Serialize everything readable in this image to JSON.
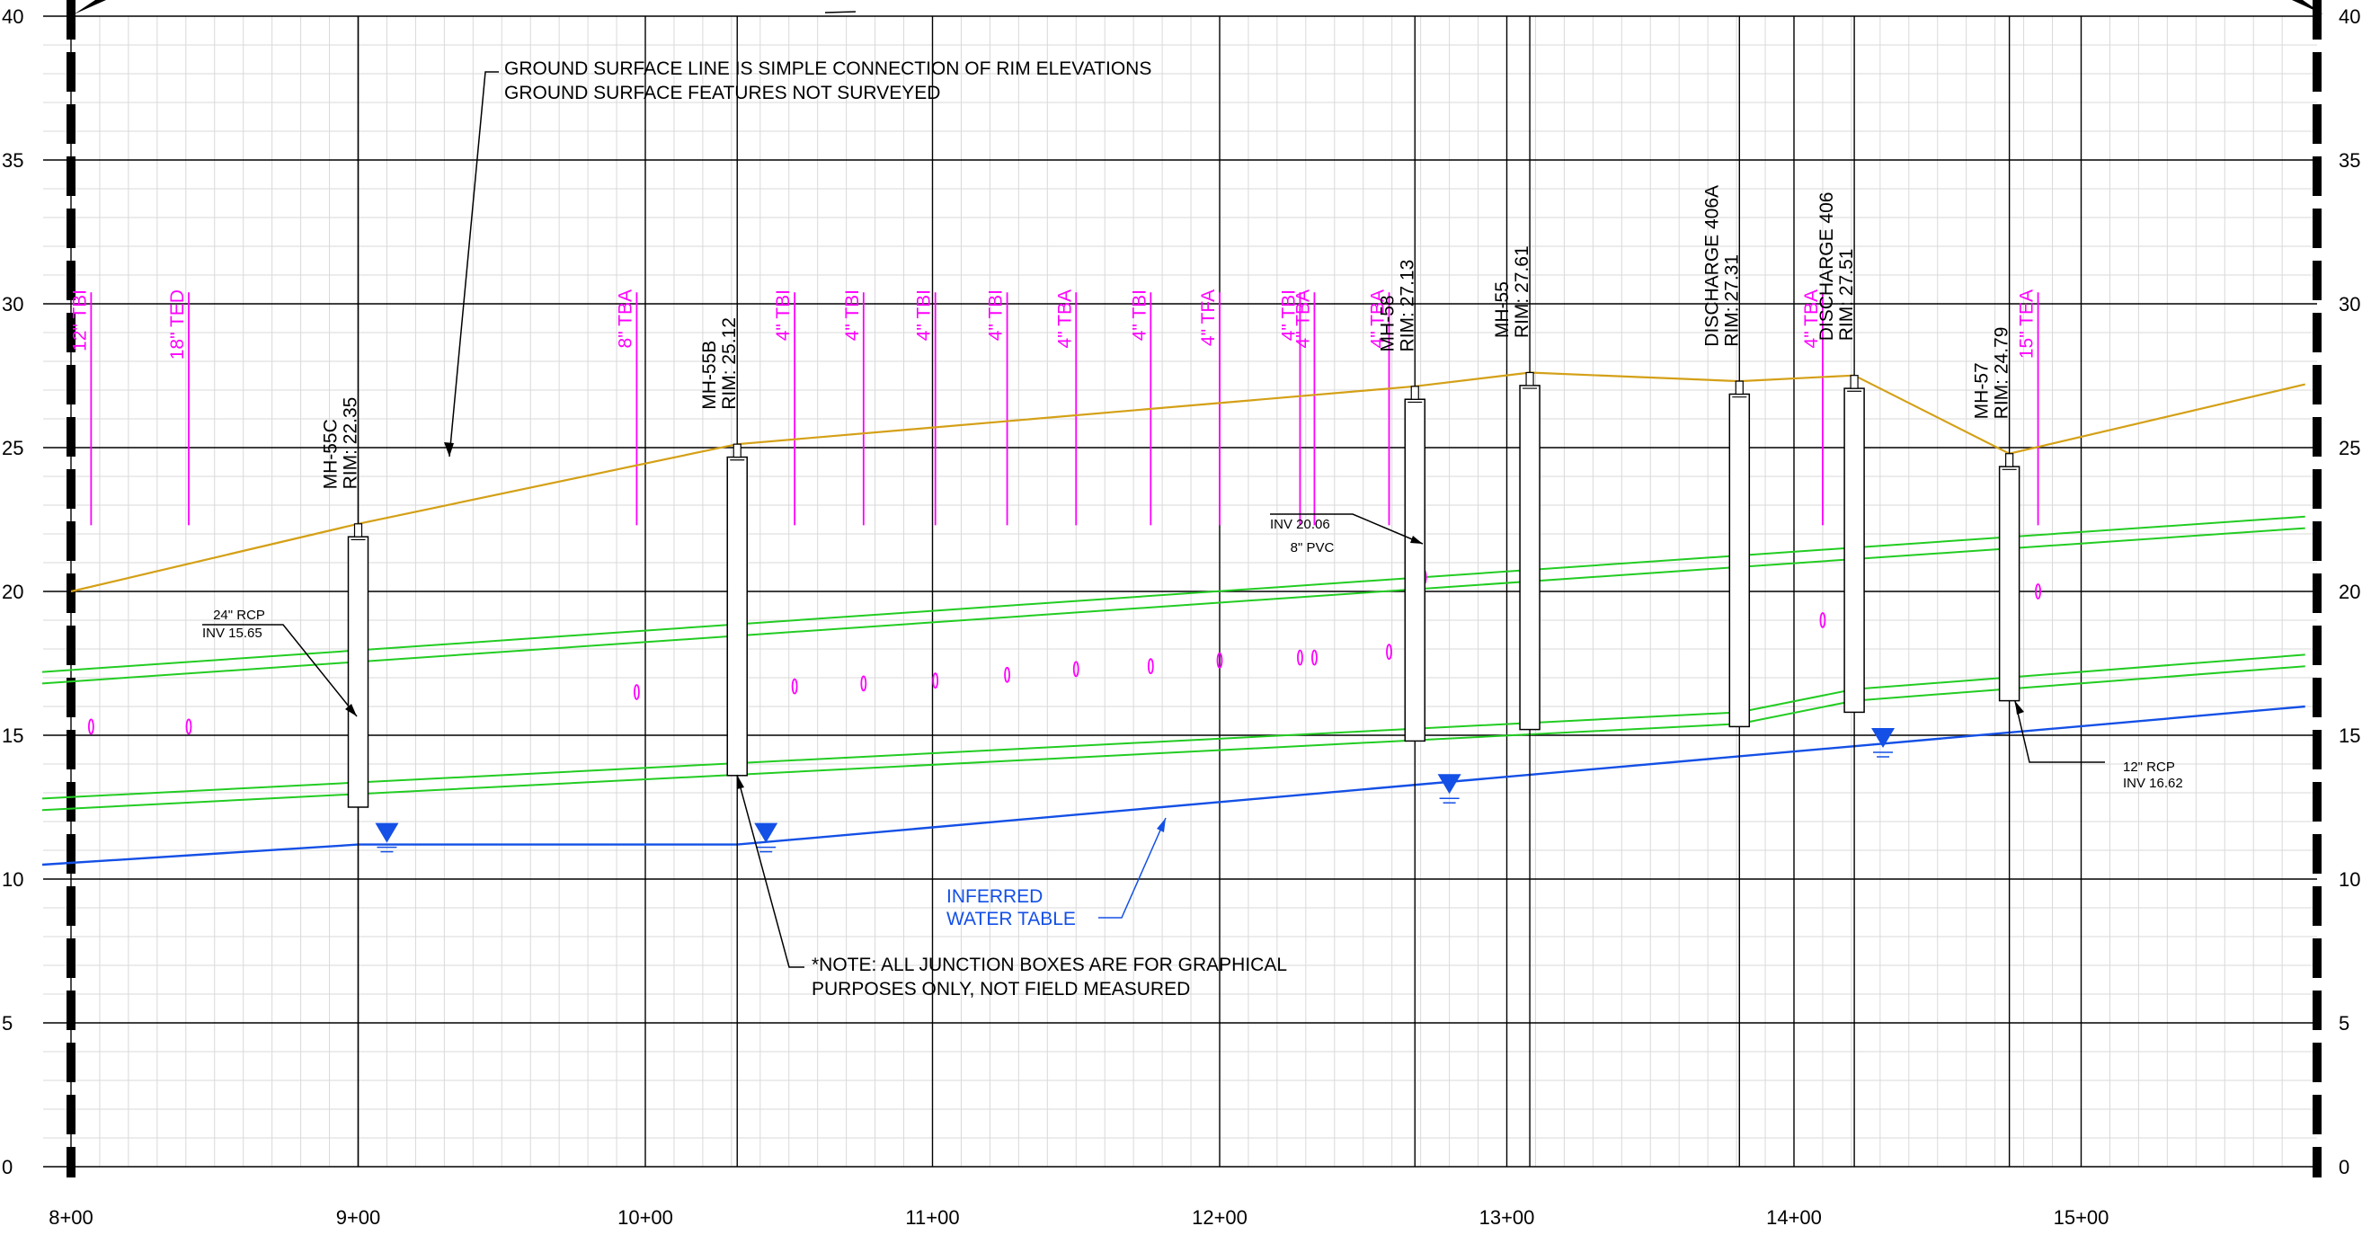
{
  "x_axis": {
    "labels": [
      "8+00",
      "9+00",
      "10+00",
      "11+00",
      "12+00",
      "13+00",
      "14+00",
      "15+00"
    ],
    "values": [
      800,
      900,
      1000,
      1100,
      1200,
      1300,
      1400,
      1500
    ],
    "range": [
      800,
      1578
    ]
  },
  "y_axis": {
    "labels": [
      "0",
      "5",
      "10",
      "15",
      "20",
      "25",
      "30",
      "35",
      "40"
    ],
    "values": [
      0,
      5,
      10,
      15,
      20,
      25,
      30,
      35,
      40
    ],
    "range": [
      0,
      40
    ]
  },
  "colors": {
    "ground_surface": "#d4a017",
    "water_table": "#1450e6",
    "conduit": "#22cc22",
    "utility": "#ff00ff",
    "linework": "#000000"
  },
  "structures": [
    {
      "name": "MH-55C",
      "rim_label": "RIM: 22.35",
      "station": 900,
      "rim": 22.35,
      "bottom": 12.5
    },
    {
      "name": "MH-55B",
      "rim_label": "RIM: 25.12",
      "station": 1032,
      "rim": 25.12,
      "bottom": 13.6
    },
    {
      "name": "MH-58",
      "rim_label": "RIM: 27.13",
      "station": 1268,
      "rim": 27.13,
      "bottom": 14.8
    },
    {
      "name": "MH-55",
      "rim_label": "RIM: 27.61",
      "station": 1308,
      "rim": 27.61,
      "bottom": 15.2
    },
    {
      "name": "DISCHARGE 406A",
      "rim_label": "RIM: 27.31",
      "station": 1381,
      "rim": 27.31,
      "bottom": 15.3
    },
    {
      "name": "DISCHARGE 406",
      "rim_label": "RIM: 27.51",
      "station": 1421,
      "rim": 27.51,
      "bottom": 15.8
    },
    {
      "name": "MH-57",
      "rim_label": "RIM: 24.79",
      "station": 1475,
      "rim": 24.79,
      "bottom": 16.2
    }
  ],
  "utilities": [
    {
      "label": "12\" TBI",
      "station": 807,
      "ell_y": 15.3
    },
    {
      "label": "18\" TED",
      "station": 841,
      "ell_y": 15.3
    },
    {
      "label": "8\" TBA",
      "station": 997,
      "ell_y": 16.5
    },
    {
      "label": "4\" TBI",
      "station": 1052,
      "ell_y": 16.7
    },
    {
      "label": "4\" TBI",
      "station": 1076,
      "ell_y": 16.8
    },
    {
      "label": "4\" TBI",
      "station": 1101,
      "ell_y": 16.9
    },
    {
      "label": "4\" TBI",
      "station": 1126,
      "ell_y": 17.1
    },
    {
      "label": "4\" TBA",
      "station": 1150,
      "ell_y": 17.3
    },
    {
      "label": "4\" TBI",
      "station": 1176,
      "ell_y": 17.4
    },
    {
      "label": "4\" TFA",
      "station": 1200,
      "ell_y": 17.6
    },
    {
      "label": "4\" TBI",
      "station": 1228,
      "ell_y": 17.7
    },
    {
      "label": "4\" TBA",
      "station": 1233,
      "ell_y": 17.7
    },
    {
      "label": "4\" TBA",
      "station": 1259,
      "ell_y": 17.9
    },
    {
      "label": "4\" TBA",
      "station": 1410,
      "ell_y": 19.0
    },
    {
      "label": "15\" TEA",
      "station": 1485,
      "ell_y": 20.0
    }
  ],
  "ground_surface": {
    "stations": [
      800,
      900,
      1032,
      1268,
      1308,
      1381,
      1421,
      1475,
      1578
    ],
    "elevations": [
      20.0,
      22.35,
      25.12,
      27.13,
      27.61,
      27.31,
      27.51,
      24.79,
      27.2
    ]
  },
  "water_table": {
    "stations": [
      790,
      900,
      1032,
      1578
    ],
    "elevations": [
      10.5,
      11.2,
      11.2,
      16.0
    ]
  },
  "water_table_markers": [
    {
      "station": 910,
      "elevation": 11.2
    },
    {
      "station": 1042,
      "elevation": 11.2
    },
    {
      "station": 1280,
      "elevation": 12.9
    },
    {
      "station": 1431,
      "elevation": 14.5
    }
  ],
  "conduits": [
    {
      "stations": [
        790,
        1578
      ],
      "elevations": [
        17.2,
        22.6
      ]
    },
    {
      "stations": [
        790,
        1578
      ],
      "elevations": [
        16.8,
        22.2
      ]
    },
    {
      "stations": [
        790,
        1381,
        1421,
        1578
      ],
      "elevations": [
        12.8,
        15.8,
        16.6,
        17.8
      ]
    },
    {
      "stations": [
        790,
        1381,
        1421,
        1578
      ],
      "elevations": [
        12.4,
        15.4,
        16.2,
        17.4
      ]
    }
  ],
  "callouts": {
    "ground_note_line1": "GROUND SURFACE LINE IS SIMPLE CONNECTION OF RIM ELEVATIONS",
    "ground_note_line2": "GROUND SURFACE FEATURES NOT SURVEYED",
    "rcp24_size": "24\" RCP",
    "rcp24_inv": "INV 15.65",
    "pvc8_size": "8\" PVC",
    "pvc8_inv": "INV 20.06",
    "rcp12_size": "12\" RCP",
    "rcp12_inv": "INV 16.62",
    "water_table_line1": "INFERRED",
    "water_table_line2": "WATER TABLE",
    "junction_note_line1": "*NOTE: ALL JUNCTION BOXES ARE FOR GRAPHICAL",
    "junction_note_line2": "PURPOSES ONLY, NOT FIELD MEASURED"
  }
}
